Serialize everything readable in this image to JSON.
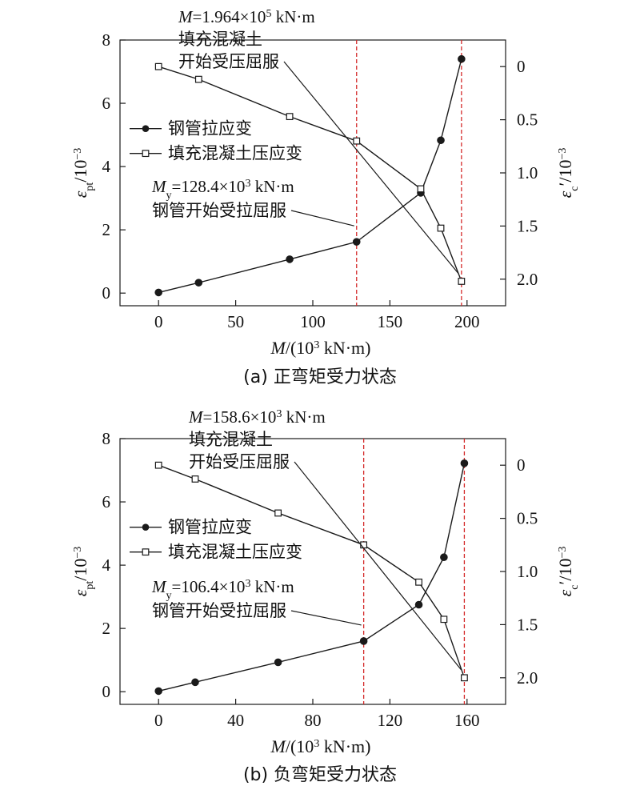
{
  "chart_data": [
    {
      "type": "line",
      "caption": "(a) 正弯矩受力状态",
      "xlabel": {
        "var": "M",
        "unit": "/(10",
        "exp": "3",
        "tail": " kN·m)"
      },
      "ylabel_left": {
        "var": "ε",
        "sub": "pt",
        "tail": "/10",
        "exp": "−3"
      },
      "ylabel_right": {
        "var": "ε",
        "sub": "c",
        "prime": "′",
        "tail": "/10",
        "exp": "−3"
      },
      "xlim": [
        -25,
        225
      ],
      "xticks": [
        0,
        50,
        100,
        150,
        200
      ],
      "xtick_labels": [
        "0",
        "50",
        "100",
        "150",
        "200"
      ],
      "ylim_left": [
        -0.4,
        8
      ],
      "yticks_left": [
        0,
        2,
        4,
        6,
        8
      ],
      "ytick_labels_left": [
        "0",
        "2",
        "4",
        "6",
        "8"
      ],
      "ylim_right": [
        -0.25,
        2.25
      ],
      "yticks_right": [
        0,
        0.5,
        1.0,
        1.5,
        2.0
      ],
      "ytick_labels_right": [
        "0",
        "0.5",
        "1.0",
        "1.5",
        "2.0"
      ],
      "legend": {
        "placement": "left-middle"
      },
      "series": [
        {
          "name": "钢管拉应变",
          "marker": "filled-circle",
          "axis": "left",
          "x": [
            0,
            26,
            85,
            128.4,
            170,
            183,
            196.4
          ],
          "y": [
            0.02,
            0.33,
            1.07,
            1.62,
            3.17,
            4.83,
            7.4
          ]
        },
        {
          "name": "填充混凝土压应变",
          "marker": "open-square",
          "axis": "right",
          "x": [
            0,
            26,
            85,
            128.4,
            170,
            183,
            196.4
          ],
          "y": [
            0.0,
            0.12,
            0.47,
            0.7,
            1.15,
            1.52,
            2.02
          ]
        }
      ],
      "vlines": [
        128.4,
        196.4
      ],
      "annotations": [
        {
          "lines": [
            {
              "parts": [
                {
                  "t": "M",
                  "italic": true
                },
                {
                  "t": "=1.964×10"
                },
                {
                  "t": "5",
                  "sup": true
                },
                {
                  "t": " kN·m"
                }
              ]
            },
            {
              "parts": [
                {
                  "t": "填充混凝土",
                  "cjk": true
                }
              ]
            },
            {
              "parts": [
                {
                  "t": "开始受压屈服",
                  "cjk": true
                }
              ]
            }
          ],
          "target": {
            "x": 196.4,
            "series": 1
          }
        },
        {
          "lines": [
            {
              "parts": [
                {
                  "t": "M",
                  "italic": true
                },
                {
                  "t": "y",
                  "sub": true
                },
                {
                  "t": "=128.4×10"
                },
                {
                  "t": "3",
                  "sup": true
                },
                {
                  "t": " kN·m"
                }
              ]
            },
            {
              "parts": [
                {
                  "t": "钢管开始受拉屈服",
                  "cjk": true
                }
              ]
            }
          ],
          "target": {
            "x": 128.4,
            "series": 0
          }
        }
      ]
    },
    {
      "type": "line",
      "caption": "(b) 负弯矩受力状态",
      "xlabel": {
        "var": "M",
        "unit": "/(10",
        "exp": "3",
        "tail": " kN·m)"
      },
      "ylabel_left": {
        "var": "ε",
        "sub": "pt",
        "tail": "/10",
        "exp": "−3"
      },
      "ylabel_right": {
        "var": "ε",
        "sub": "c",
        "prime": "′",
        "tail": "/10",
        "exp": "−3"
      },
      "xlim": [
        -20,
        180
      ],
      "xticks": [
        0,
        40,
        80,
        120,
        160
      ],
      "xtick_labels": [
        "0",
        "40",
        "80",
        "120",
        "160"
      ],
      "ylim_left": [
        -0.4,
        8
      ],
      "yticks_left": [
        0,
        2,
        4,
        6,
        8
      ],
      "ytick_labels_left": [
        "0",
        "2",
        "4",
        "6",
        "8"
      ],
      "ylim_right": [
        -0.25,
        2.25
      ],
      "yticks_right": [
        0,
        0.5,
        1.0,
        1.5,
        2.0
      ],
      "ytick_labels_right": [
        "0",
        "0.5",
        "1.0",
        "1.5",
        "2.0"
      ],
      "legend": {
        "placement": "left-middle"
      },
      "series": [
        {
          "name": "钢管拉应变",
          "marker": "filled-circle",
          "axis": "left",
          "x": [
            0,
            19,
            62,
            106.4,
            135,
            148,
            158.6
          ],
          "y": [
            0.02,
            0.3,
            0.93,
            1.6,
            2.75,
            4.25,
            7.22
          ]
        },
        {
          "name": "填充混凝土压应变",
          "marker": "open-square",
          "axis": "right",
          "x": [
            0,
            19,
            62,
            106.4,
            135,
            148,
            158.6
          ],
          "y": [
            0.0,
            0.13,
            0.45,
            0.75,
            1.1,
            1.45,
            2.0
          ]
        }
      ],
      "vlines": [
        106.4,
        158.6
      ],
      "annotations": [
        {
          "lines": [
            {
              "parts": [
                {
                  "t": "M",
                  "italic": true
                },
                {
                  "t": "=158.6×10"
                },
                {
                  "t": "3",
                  "sup": true
                },
                {
                  "t": " kN·m"
                }
              ]
            },
            {
              "parts": [
                {
                  "t": "填充混凝土",
                  "cjk": true
                }
              ]
            },
            {
              "parts": [
                {
                  "t": "开始受压屈服",
                  "cjk": true
                }
              ]
            }
          ],
          "target": {
            "x": 158.6,
            "series": 1
          }
        },
        {
          "lines": [
            {
              "parts": [
                {
                  "t": "M",
                  "italic": true
                },
                {
                  "t": "y",
                  "sub": true
                },
                {
                  "t": "=106.4×10"
                },
                {
                  "t": "3",
                  "sup": true
                },
                {
                  "t": " kN·m"
                }
              ]
            },
            {
              "parts": [
                {
                  "t": "钢管开始受拉屈服",
                  "cjk": true
                }
              ]
            }
          ],
          "target": {
            "x": 106.4,
            "series": 0
          }
        }
      ]
    }
  ],
  "colors": {
    "line": "#1a1a1a",
    "marker_fill": "#1a1a1a",
    "vline": "#d42a2a",
    "text": "#111111"
  }
}
